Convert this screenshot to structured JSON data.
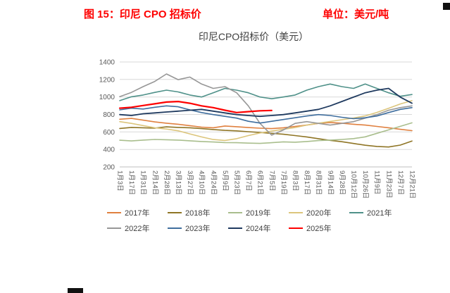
{
  "page": {
    "accent_color": "#fe0000"
  },
  "header": {
    "caption": "图 15：印尼 CPO 招标价",
    "unit": "单位：美元/吨"
  },
  "chart_data": {
    "type": "line",
    "title": "印尼CPO招标价（美元）",
    "xlabel": "",
    "ylabel": "",
    "ylim": [
      200,
      1400
    ],
    "yticks": [
      200,
      400,
      600,
      800,
      1000,
      1200,
      1400
    ],
    "grid": true,
    "grid_color": "#d9d9d9",
    "axis_color": "#bfbfbf",
    "legend_position": "bottom",
    "categories": [
      "1月3日",
      "1月17日",
      "1月31日",
      "2月14日",
      "2月28日",
      "3月13日",
      "3月27日",
      "4月10日",
      "4月24日",
      "5月9日",
      "5月23日",
      "6月7日",
      "6月21日",
      "7月5日",
      "7月19日",
      "8月3日",
      "8月17日",
      "8月31日",
      "9月14日",
      "9月28日",
      "10月12日",
      "10月26日",
      "11月9日",
      "11月23日",
      "12月7日",
      "12月21日"
    ],
    "series": [
      {
        "name": "2017年",
        "color": "#e0803f",
        "stroke_width": 1.6,
        "values": [
          745,
          755,
          735,
          715,
          700,
          688,
          672,
          655,
          648,
          668,
          660,
          650,
          643,
          638,
          648,
          663,
          678,
          698,
          708,
          700,
          688,
          678,
          663,
          648,
          630,
          615
        ]
      },
      {
        "name": "2018年",
        "color": "#8f7525",
        "stroke_width": 1.6,
        "values": [
          640,
          652,
          648,
          644,
          658,
          652,
          648,
          638,
          628,
          618,
          612,
          603,
          594,
          584,
          574,
          558,
          543,
          523,
          504,
          488,
          468,
          448,
          434,
          428,
          450,
          496
        ]
      },
      {
        "name": "2019年",
        "color": "#a9be8d",
        "stroke_width": 1.6,
        "values": [
          505,
          497,
          507,
          514,
          511,
          507,
          499,
          491,
          485,
          479,
          477,
          472,
          469,
          477,
          487,
          483,
          491,
          501,
          507,
          514,
          524,
          544,
          584,
          624,
          664,
          704
        ]
      },
      {
        "name": "2020年",
        "color": "#dcc57c",
        "stroke_width": 1.6,
        "values": [
          718,
          698,
          673,
          648,
          633,
          613,
          578,
          543,
          513,
          503,
          523,
          558,
          588,
          610,
          630,
          650,
          678,
          700,
          720,
          740,
          760,
          783,
          823,
          870,
          920,
          958
        ]
      },
      {
        "name": "2021年",
        "color": "#4f9189",
        "stroke_width": 1.6,
        "values": [
          958,
          1002,
          1022,
          1052,
          1078,
          1058,
          1022,
          1000,
          1048,
          1098,
          1078,
          1048,
          1000,
          980,
          1000,
          1022,
          1078,
          1118,
          1148,
          1118,
          1098,
          1148,
          1098,
          1048,
          1008,
          1028
        ]
      },
      {
        "name": "2022年",
        "color": "#979797",
        "stroke_width": 1.6,
        "values": [
          1003,
          1052,
          1118,
          1178,
          1263,
          1198,
          1228,
          1148,
          1098,
          1118,
          1048,
          898,
          698,
          563,
          623,
          698,
          718,
          698,
          678,
          698,
          718,
          758,
          798,
          848,
          878,
          898
        ]
      },
      {
        "name": "2023年",
        "color": "#3f6e9e",
        "stroke_width": 1.6,
        "values": [
          852,
          872,
          862,
          882,
          898,
          888,
          852,
          822,
          798,
          778,
          758,
          722,
          702,
          722,
          742,
          762,
          782,
          798,
          788,
          768,
          752,
          762,
          782,
          822,
          858,
          878
        ]
      },
      {
        "name": "2024年",
        "color": "#1f3a5f",
        "stroke_width": 1.8,
        "values": [
          798,
          788,
          808,
          818,
          828,
          838,
          848,
          858,
          838,
          818,
          798,
          788,
          778,
          788,
          798,
          818,
          838,
          858,
          898,
          948,
          998,
          1048,
          1078,
          1098,
          998,
          928
        ]
      },
      {
        "name": "2025年",
        "color": "#fe0000",
        "stroke_width": 2.2,
        "values": [
          872,
          882,
          902,
          922,
          942,
          948,
          928,
          898,
          878,
          848,
          822,
          832,
          842,
          846
        ]
      }
    ]
  }
}
